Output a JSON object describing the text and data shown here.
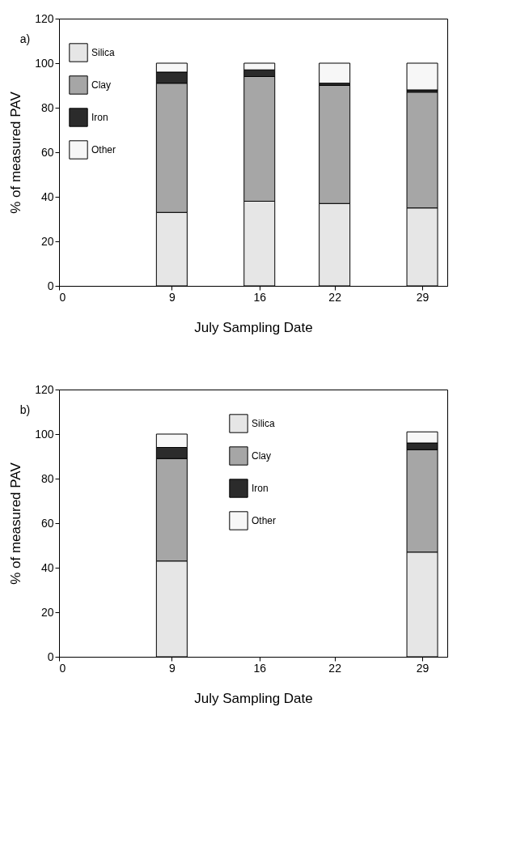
{
  "chart_data": [
    {
      "type": "bar",
      "title": "a)",
      "stacked": true,
      "xlabel": "July Sampling Date",
      "ylabel": "% of measured PAV",
      "x": [
        9,
        16,
        22,
        29
      ],
      "xlim": [
        0,
        31
      ],
      "xticks": [
        0,
        9,
        16,
        22,
        29
      ],
      "ylim": [
        0,
        120
      ],
      "yticks": [
        0,
        20,
        40,
        60,
        80,
        100,
        120
      ],
      "grid": false,
      "legend": "top left",
      "series": [
        {
          "name": "Silica",
          "color": "#e6e6e6",
          "values": [
            33,
            38,
            37,
            35
          ]
        },
        {
          "name": "Clay",
          "color": "#a6a6a6",
          "values": [
            58,
            56,
            53,
            52
          ]
        },
        {
          "name": "Iron",
          "color": "#2b2b2b",
          "values": [
            5,
            3,
            1,
            1
          ]
        },
        {
          "name": "Other",
          "color": "#f7f7f7",
          "values": [
            4,
            3,
            9,
            12
          ]
        }
      ]
    },
    {
      "type": "bar",
      "title": "b)",
      "stacked": true,
      "xlabel": "July Sampling Date",
      "ylabel": "% of measured PAV",
      "x": [
        9,
        29
      ],
      "xlim": [
        0,
        31
      ],
      "xticks": [
        0,
        9,
        16,
        22,
        29
      ],
      "ylim": [
        0,
        120
      ],
      "yticks": [
        0,
        20,
        40,
        60,
        80,
        100,
        120
      ],
      "grid": false,
      "legend": "top",
      "series": [
        {
          "name": "Silica",
          "color": "#e6e6e6",
          "values": [
            43,
            47
          ]
        },
        {
          "name": "Clay",
          "color": "#a6a6a6",
          "values": [
            46,
            46
          ]
        },
        {
          "name": "Iron",
          "color": "#2b2b2b",
          "values": [
            5,
            3
          ]
        },
        {
          "name": "Other",
          "color": "#f7f7f7",
          "values": [
            6,
            5
          ]
        }
      ]
    }
  ]
}
